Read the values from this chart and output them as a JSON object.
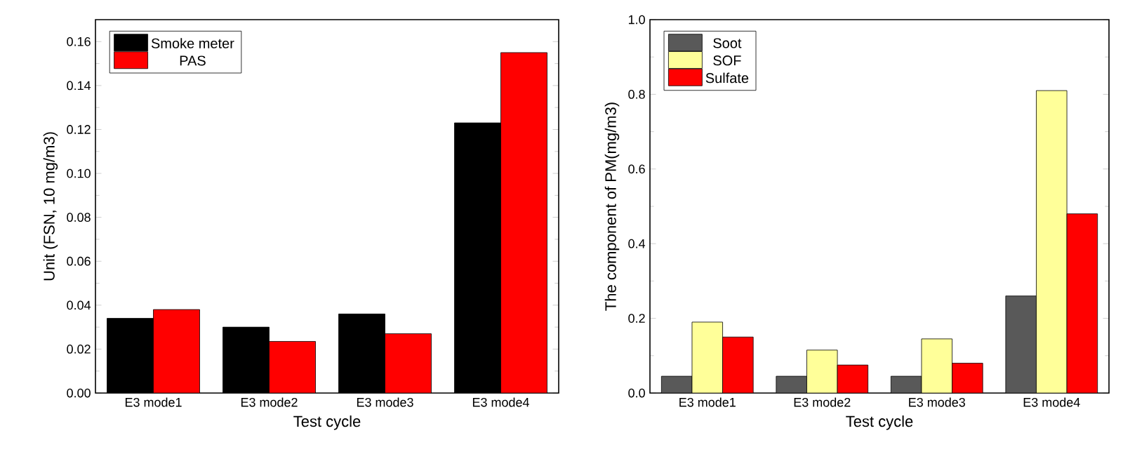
{
  "chart_data": [
    {
      "type": "bar",
      "categories": [
        "E3 mode1",
        "E3 mode2",
        "E3 mode3",
        "E3 mode4"
      ],
      "xlabel": "Test cycle",
      "ylabel": "Unit (FSN, 10 mg/m3)",
      "ylim": [
        0,
        0.17
      ],
      "yticks": [
        {
          "value": 0,
          "label": "0.00"
        },
        {
          "value": 0.02,
          "label": "0.02"
        },
        {
          "value": 0.04,
          "label": "0.04"
        },
        {
          "value": 0.06,
          "label": "0.06"
        },
        {
          "value": 0.08,
          "label": "0.08"
        },
        {
          "value": 0.1,
          "label": "0.10"
        },
        {
          "value": 0.12,
          "label": "0.12"
        },
        {
          "value": 0.14,
          "label": "0.14"
        },
        {
          "value": 0.16,
          "label": "0.16"
        }
      ],
      "legend": "top left",
      "series": [
        {
          "name": "Smoke meter",
          "color": "#000000",
          "values": [
            0.034,
            0.03,
            0.036,
            0.123
          ]
        },
        {
          "name": "PAS",
          "color": "#ff0000",
          "values": [
            0.038,
            0.0235,
            0.027,
            0.155
          ]
        }
      ]
    },
    {
      "type": "bar",
      "categories": [
        "E3 mode1",
        "E3 mode2",
        "E3 mode3",
        "E3 mode4"
      ],
      "xlabel": "Test cycle",
      "ylabel": "The component of PM(mg/m3)",
      "ylim": [
        0,
        1
      ],
      "yticks": [
        {
          "value": 0,
          "label": "0.0"
        },
        {
          "value": 0.2,
          "label": "0.2"
        },
        {
          "value": 0.4,
          "label": "0.4"
        },
        {
          "value": 0.6,
          "label": "0.6"
        },
        {
          "value": 0.8,
          "label": "0.8"
        },
        {
          "value": 1,
          "label": "1.0"
        }
      ],
      "legend": "top left",
      "series": [
        {
          "name": "Soot",
          "color": "#595959",
          "values": [
            0.045,
            0.045,
            0.045,
            0.26
          ]
        },
        {
          "name": "SOF",
          "color": "#ffff99",
          "values": [
            0.19,
            0.115,
            0.145,
            0.81
          ]
        },
        {
          "name": "Sulfate",
          "color": "#ff0000",
          "values": [
            0.15,
            0.075,
            0.08,
            0.48
          ]
        }
      ]
    }
  ]
}
